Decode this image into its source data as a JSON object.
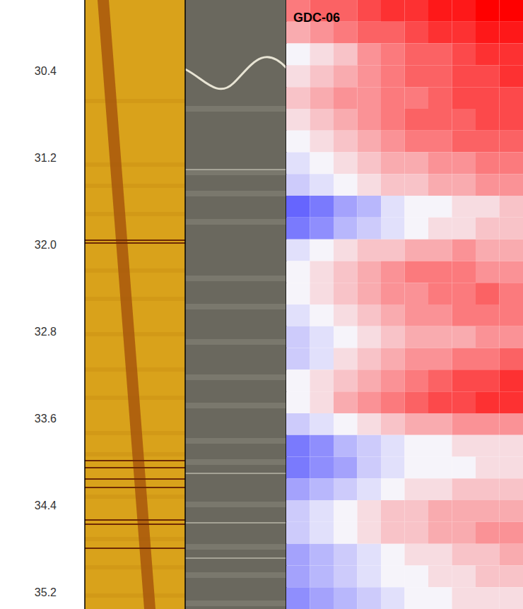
{
  "chart_data": {
    "type": "heatmap",
    "title": "GDC-06",
    "ylim": [
      29.75,
      35.35
    ],
    "yticks": [
      30.4,
      31.2,
      {
        "value": 32,
        "label": "32.0"
      },
      32.8,
      33.6,
      34.4,
      35.2
    ],
    "tick_labels": "y",
    "zlim": [
      -1,
      1
    ],
    "rows": [
      29.85,
      30.05,
      30.25,
      30.45,
      30.65,
      30.85,
      31.05,
      31.25,
      31.45,
      31.65,
      31.85,
      32.05,
      32.25,
      32.45,
      32.65,
      32.85,
      33.05,
      33.25,
      33.45,
      33.65,
      33.85,
      34.05,
      34.25,
      34.45,
      34.65,
      34.85,
      35.05,
      35.25
    ],
    "cells": [
      [
        0.5,
        0.6,
        0.6,
        0.7,
        0.8,
        0.8,
        0.9,
        0.9,
        1.0,
        1.0
      ],
      [
        0.3,
        0.4,
        0.5,
        0.6,
        0.6,
        0.7,
        0.8,
        0.8,
        0.9,
        0.9
      ],
      [
        0.0,
        0.1,
        0.2,
        0.4,
        0.5,
        0.6,
        0.6,
        0.7,
        0.8,
        0.8
      ],
      [
        0.1,
        0.2,
        0.3,
        0.4,
        0.5,
        0.6,
        0.6,
        0.7,
        0.7,
        0.8
      ],
      [
        0.2,
        0.3,
        0.4,
        0.4,
        0.5,
        0.5,
        0.6,
        0.7,
        0.7,
        0.7
      ],
      [
        0.1,
        0.2,
        0.3,
        0.4,
        0.5,
        0.6,
        0.6,
        0.6,
        0.7,
        0.7
      ],
      [
        0.0,
        0.1,
        0.2,
        0.3,
        0.4,
        0.5,
        0.5,
        0.6,
        0.6,
        0.6
      ],
      [
        -0.1,
        0.0,
        0.1,
        0.2,
        0.3,
        0.3,
        0.4,
        0.4,
        0.5,
        0.5
      ],
      [
        -0.2,
        -0.1,
        0.0,
        0.1,
        0.2,
        0.2,
        0.3,
        0.3,
        0.4,
        0.4
      ],
      [
        -0.7,
        -0.6,
        -0.4,
        -0.3,
        -0.1,
        0.0,
        0.0,
        0.1,
        0.1,
        0.2
      ],
      [
        -0.6,
        -0.5,
        -0.3,
        -0.2,
        -0.1,
        0.0,
        0.1,
        0.1,
        0.2,
        0.2
      ],
      [
        -0.1,
        0.0,
        0.1,
        0.2,
        0.2,
        0.3,
        0.3,
        0.4,
        0.3,
        0.3
      ],
      [
        0.0,
        0.1,
        0.2,
        0.3,
        0.4,
        0.5,
        0.5,
        0.5,
        0.4,
        0.4
      ],
      [
        0.0,
        0.1,
        0.2,
        0.3,
        0.4,
        0.4,
        0.5,
        0.5,
        0.6,
        0.5
      ],
      [
        -0.1,
        0.0,
        0.1,
        0.2,
        0.3,
        0.4,
        0.4,
        0.5,
        0.5,
        0.5
      ],
      [
        -0.2,
        -0.1,
        0.0,
        0.1,
        0.2,
        0.3,
        0.3,
        0.3,
        0.4,
        0.4
      ],
      [
        -0.2,
        -0.1,
        0.1,
        0.2,
        0.3,
        0.4,
        0.4,
        0.5,
        0.5,
        0.6
      ],
      [
        0.0,
        0.1,
        0.2,
        0.3,
        0.4,
        0.5,
        0.6,
        0.7,
        0.7,
        0.8
      ],
      [
        0.0,
        0.1,
        0.3,
        0.4,
        0.5,
        0.6,
        0.7,
        0.7,
        0.8,
        0.8
      ],
      [
        -0.2,
        -0.1,
        0.0,
        0.1,
        0.2,
        0.3,
        0.3,
        0.4,
        0.4,
        0.4
      ],
      [
        -0.6,
        -0.5,
        -0.3,
        -0.2,
        -0.1,
        0.0,
        0.0,
        0.1,
        0.1,
        0.1
      ],
      [
        -0.6,
        -0.5,
        -0.4,
        -0.2,
        -0.1,
        0.0,
        0.0,
        0.0,
        0.1,
        0.1
      ],
      [
        -0.4,
        -0.3,
        -0.2,
        -0.1,
        0.0,
        0.1,
        0.1,
        0.2,
        0.2,
        0.2
      ],
      [
        -0.2,
        -0.1,
        0.0,
        0.1,
        0.2,
        0.2,
        0.3,
        0.3,
        0.3,
        0.3
      ],
      [
        -0.2,
        -0.1,
        0.0,
        0.1,
        0.2,
        0.2,
        0.3,
        0.3,
        0.4,
        0.4
      ],
      [
        -0.4,
        -0.3,
        -0.2,
        -0.1,
        0.0,
        0.1,
        0.1,
        0.2,
        0.2,
        0.3
      ],
      [
        -0.4,
        -0.3,
        -0.2,
        -0.1,
        0.0,
        0.0,
        0.1,
        0.1,
        0.2,
        0.2
      ],
      [
        -0.5,
        -0.4,
        -0.3,
        -0.2,
        -0.1,
        0.0,
        0.0,
        0.1,
        0.1,
        0.1
      ]
    ]
  }
}
